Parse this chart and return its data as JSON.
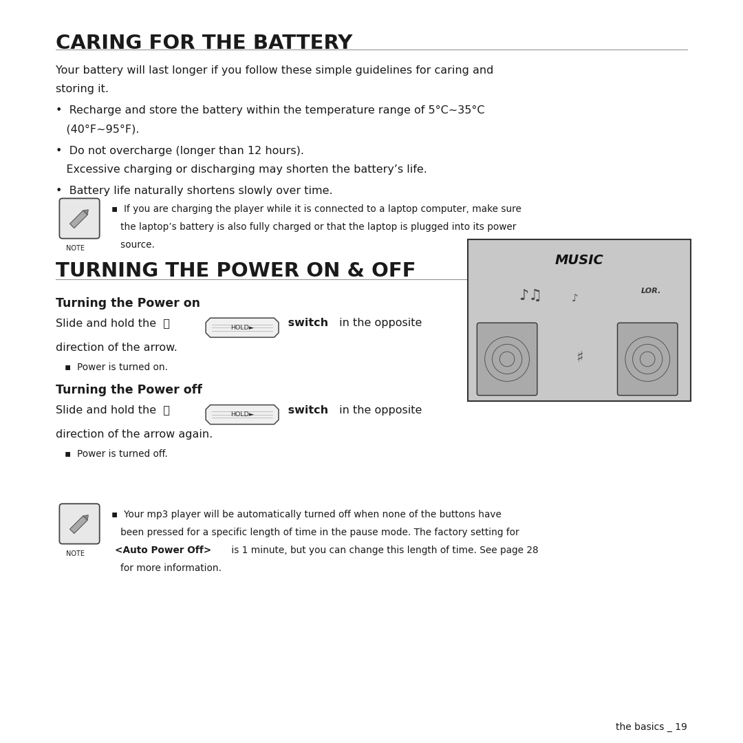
{
  "bg_color": "#ffffff",
  "title1": "CARING FOR THE BATTERY",
  "title2": "TURNING THE POWER ON & OFF",
  "section1_intro_1": "Your battery will last longer if you follow these simple guidelines for caring and",
  "section1_intro_2": "storing it.",
  "bullet1_1a": "•  Recharge and store the battery within the temperature range of 5°C~35°C",
  "bullet1_1b": "   (40°F~95°F).",
  "bullet1_2a": "•  Do not overcharge (longer than 12 hours).",
  "bullet1_2b": "   Excessive charging or discharging may shorten the battery’s life.",
  "bullet1_3": "•  Battery life naturally shortens slowly over time.",
  "note1_a": "▪  If you are charging the player while it is connected to a laptop computer, make sure",
  "note1_b": "   the laptop’s battery is also fully charged or that the laptop is plugged into its power",
  "note1_c": "   source.",
  "note_label": "NOTE",
  "subsection2_1": "Turning the Power on",
  "slide_pre1": "Slide and hold the  ⏻",
  "slide_bold1": " switch",
  "slide_post1": " in the opposite",
  "slide_line2_1": "direction of the arrow.",
  "power_on_bullet": "▪  Power is turned on.",
  "subsection2_2": "Turning the Power off",
  "slide_pre2": "Slide and hold the  ⏻",
  "slide_bold2": " switch",
  "slide_post2": " in the opposite",
  "slide_line2_2": "direction of the arrow again.",
  "power_off_bullet": "▪  Power is turned off.",
  "note2_a": "▪  Your mp3 player will be automatically turned off when none of the buttons have",
  "note2_b": "   been pressed for a specific length of time in the pause mode. The factory setting for",
  "note2_c_bold": "   <Auto Power Off>",
  "note2_c_rest": " is 1 minute, but you can change this length of time. See page 28",
  "note2_d": "   for more information.",
  "footer": "the basics _ 19",
  "ML": 0.075,
  "MR": 0.925,
  "text_color": "#1a1a1a",
  "line_color": "#888888",
  "hold_label": "HOLD►"
}
